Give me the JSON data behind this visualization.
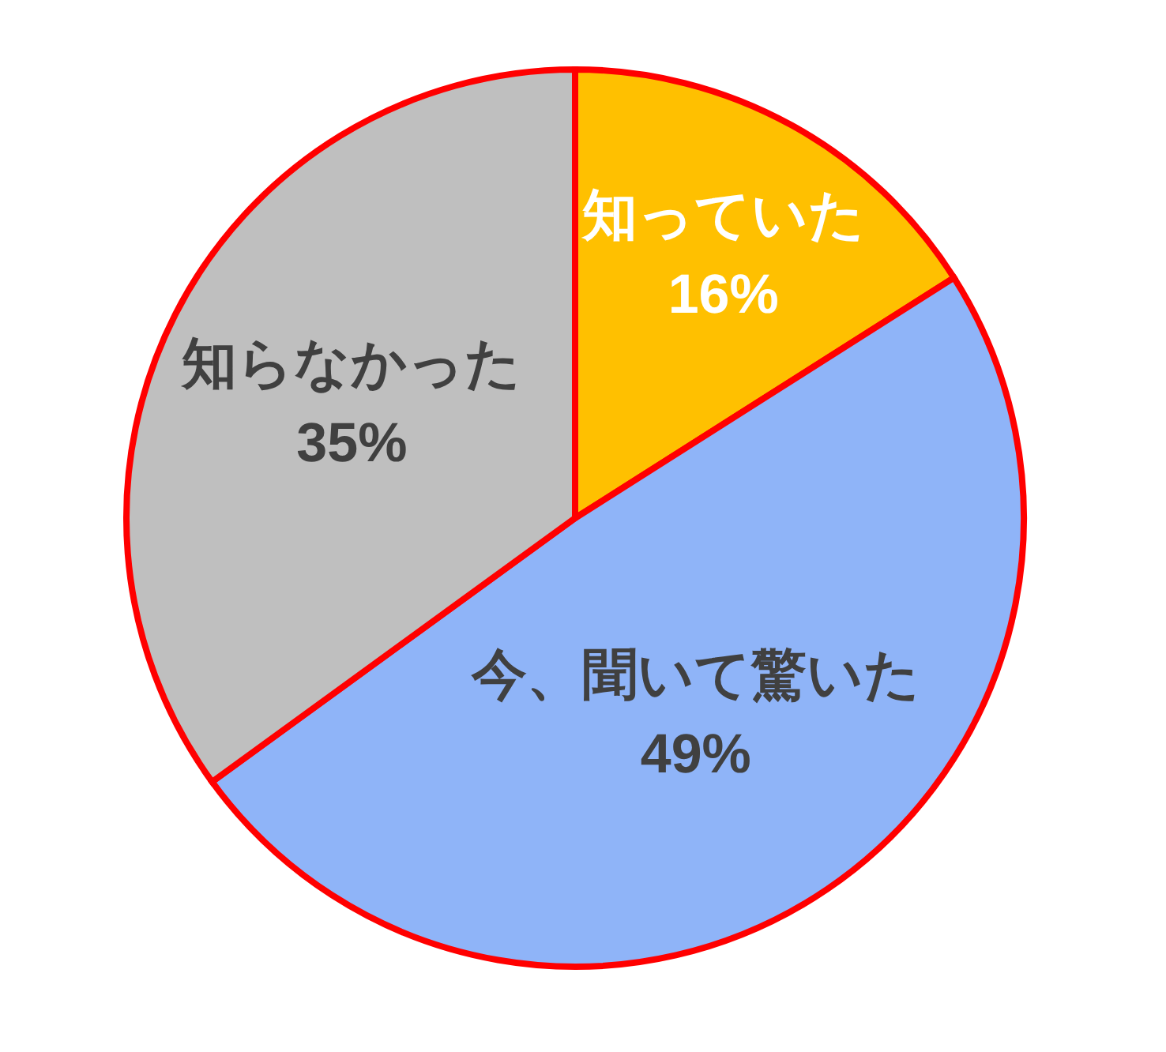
{
  "chart_data": {
    "type": "pie",
    "categories": [
      "知っていた",
      "今、聞いて驚いた",
      "知らなかった"
    ],
    "values": [
      16,
      49,
      35
    ],
    "colors": [
      "#ffc000",
      "#8fb4f8",
      "#bfbfbf"
    ],
    "value_labels": [
      "16%",
      "49%",
      "35%"
    ]
  }
}
